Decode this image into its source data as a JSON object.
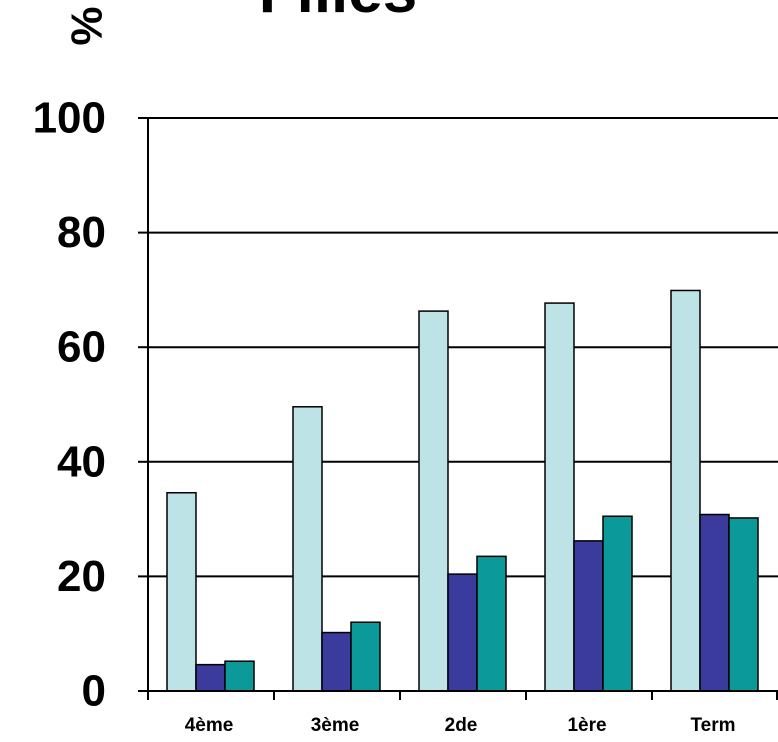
{
  "chart_data": {
    "type": "bar",
    "title": "Filles",
    "xlabel": "",
    "ylabel": "%",
    "ylim": [
      0,
      100
    ],
    "yticks": [
      0,
      20,
      40,
      60,
      80,
      100
    ],
    "grid": "horizontal",
    "legend": "none",
    "categories": [
      "4ème",
      "3ème",
      "2de",
      "1ère",
      "Term"
    ],
    "series": [
      {
        "color": "#bde3e6",
        "values": [
          34.6,
          49.6,
          66.3,
          67.7,
          69.9
        ]
      },
      {
        "color": "#3a3b9c",
        "values": [
          4.6,
          10.2,
          20.4,
          26.2,
          30.8
        ]
      },
      {
        "color": "#0b9a99",
        "values": [
          5.2,
          12.0,
          23.5,
          30.5,
          30.2
        ]
      }
    ]
  }
}
